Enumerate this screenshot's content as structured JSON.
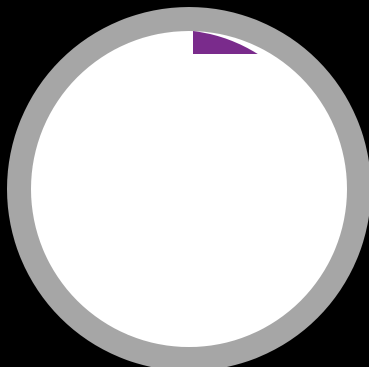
{
  "progress_indicator": {
    "value": 0.075,
    "colors": {
      "background": "#000000",
      "ring": "#a6a6a6",
      "face": "#ffffff",
      "fill": "#7a2b8c"
    }
  }
}
